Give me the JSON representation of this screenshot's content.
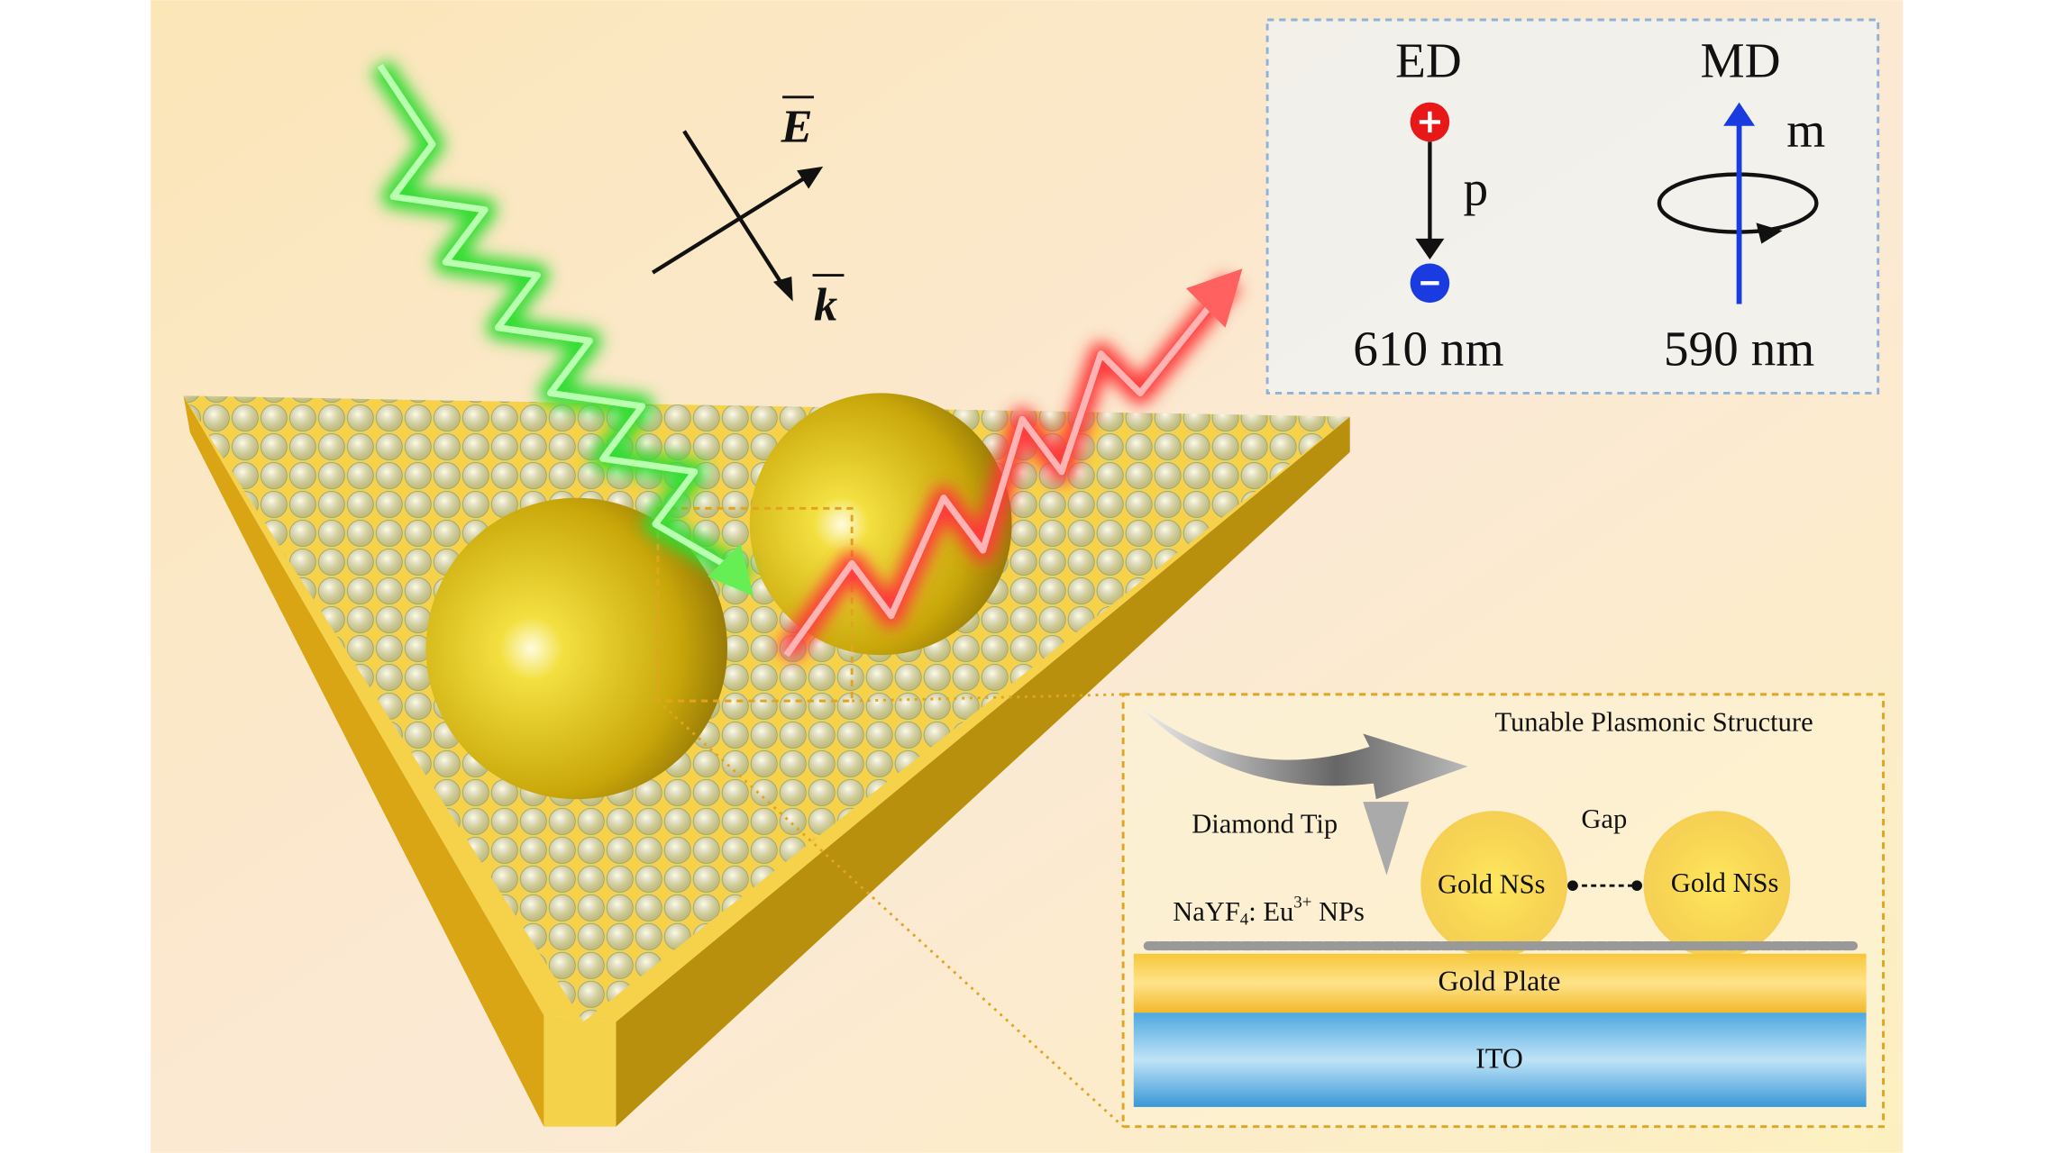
{
  "inset_top": {
    "ed": {
      "label": "ED",
      "dipole": "p",
      "wavelength": "610 nm"
    },
    "md": {
      "label": "MD",
      "dipole": "m",
      "wavelength": "590 nm"
    }
  },
  "vectors": {
    "e": "E",
    "k": "k"
  },
  "inset_bottom": {
    "title": "Tunable Plasmonic Structure",
    "tip": "Diamond Tip",
    "gap": "Gap",
    "spheres": [
      "Gold NSs",
      "Gold NSs"
    ],
    "particles": {
      "base": "NaYF",
      "sub": "4",
      "mid": ": Eu",
      "sup": "3+",
      "end": " NPs"
    },
    "plate": "Gold Plate",
    "substrate": "ITO"
  }
}
